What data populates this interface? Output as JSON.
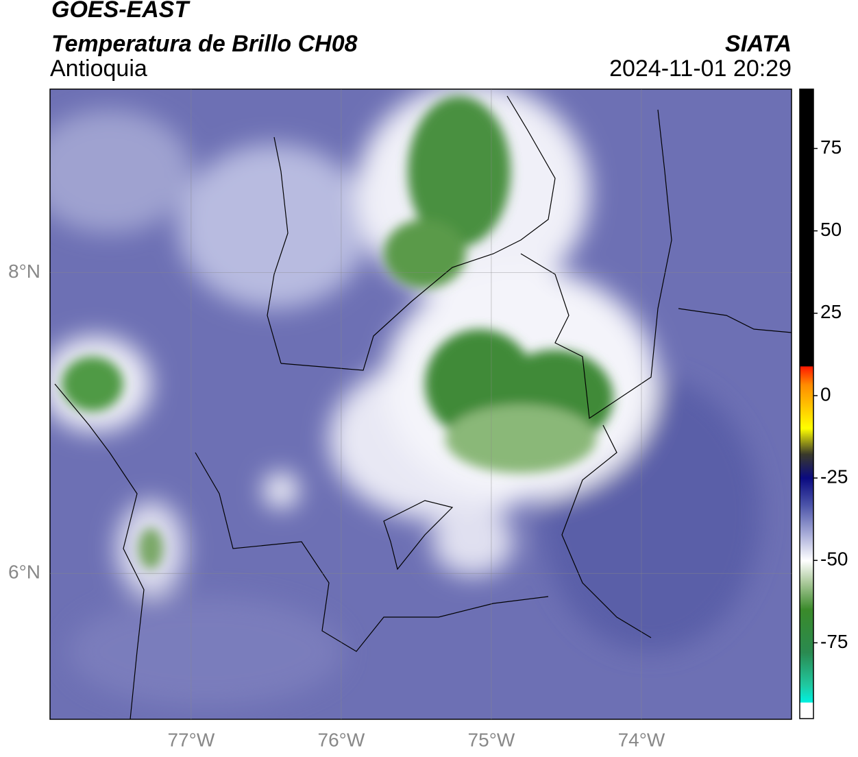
{
  "header": {
    "satellite": "GOES-EAST",
    "product": "Temperatura de Brillo CH08",
    "region": "Antioquia",
    "agency": "SIATA",
    "datetime": "2024-11-01 20:29"
  },
  "chart_data": {
    "type": "map",
    "xlim": [
      -77.94,
      -73.0
    ],
    "ylim": [
      5.03,
      9.22
    ],
    "xticks": [
      {
        "value": -77,
        "label": "77°W"
      },
      {
        "value": -76,
        "label": "76°W"
      },
      {
        "value": -75,
        "label": "75°W"
      },
      {
        "value": -74,
        "label": "74°W"
      }
    ],
    "yticks": [
      {
        "value": 6,
        "label": "6°N"
      },
      {
        "value": 8,
        "label": "8°N"
      }
    ],
    "grid": true,
    "colorbar": {
      "lim": [
        -98,
        93
      ],
      "ticks": [
        -75,
        -50,
        -25,
        0,
        25,
        50,
        75
      ]
    }
  }
}
